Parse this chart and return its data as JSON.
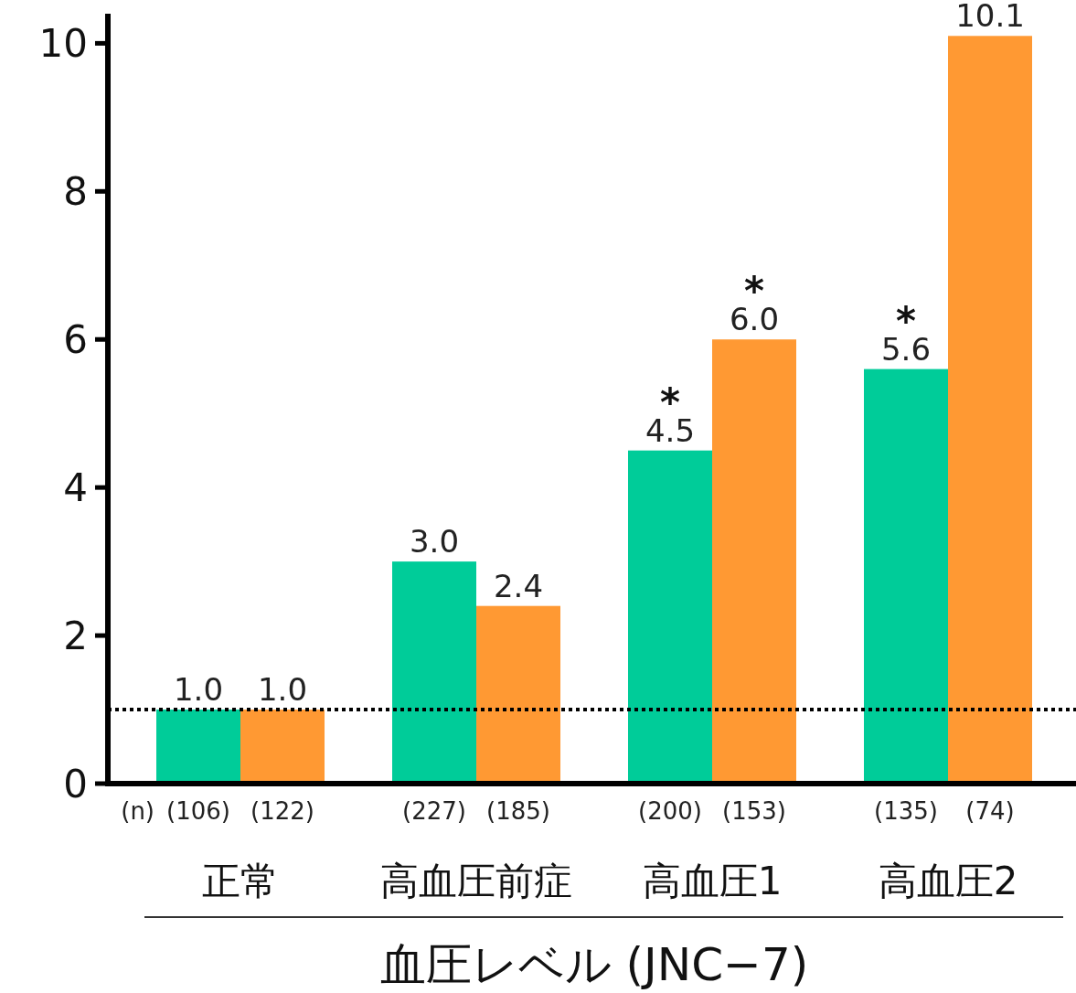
{
  "chart_data": {
    "type": "bar",
    "categories": [
      "正常",
      "高血圧前症",
      "高血圧1",
      "高血圧2"
    ],
    "series": [
      {
        "color": "#00cc99",
        "values": [
          1.0,
          3.0,
          4.5,
          5.6
        ],
        "value_labels": [
          "1.0",
          "3.0",
          "4.5",
          "5.6"
        ]
      },
      {
        "color": "#ff9933",
        "values": [
          1.0,
          2.4,
          6.0,
          10.1
        ],
        "value_labels": [
          "1.0",
          "2.4",
          "6.0",
          "10.1"
        ]
      }
    ],
    "xlabel": "血圧レベル (JNC−7)",
    "ylim": [
      0,
      10.4
    ],
    "yticks": [
      0,
      2,
      4,
      6,
      8,
      10
    ],
    "ref_lines": [
      {
        "axis": "y",
        "value": 1,
        "line_style": "dotted",
        "color": "#000000"
      }
    ],
    "annotations": [
      "(n)",
      "(106)",
      "(122)",
      "(227)",
      "(185)",
      "(200)",
      "(153)",
      "(135)",
      "(74)",
      {
        "text": "*",
        "x": "高血圧1",
        "y": 4.5
      },
      {
        "text": "*",
        "x": "高血圧1",
        "y": 6.0
      },
      {
        "text": "*",
        "x": "高血圧2",
        "y": 5.6
      }
    ],
    "grid": false
  }
}
